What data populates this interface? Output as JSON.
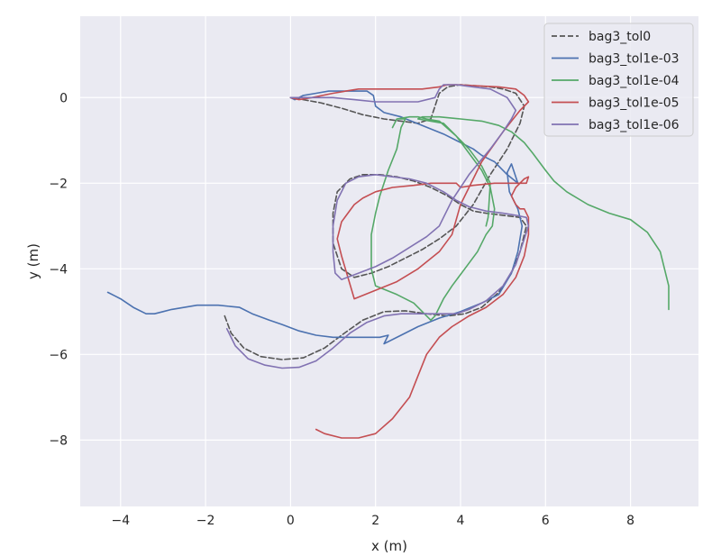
{
  "chart_data": {
    "type": "line",
    "title": "",
    "xlabel": "x (m)",
    "ylabel": "y (m)",
    "xlim": [
      -4.95,
      9.6
    ],
    "ylim": [
      -9.55,
      1.9
    ],
    "xticks": [
      -4,
      -2,
      0,
      2,
      4,
      6,
      8
    ],
    "yticks": [
      -8,
      -6,
      -4,
      -2,
      0
    ],
    "grid": true,
    "legend_position": "top-right",
    "series": [
      {
        "name": "bag3_tol0",
        "color": "#555555",
        "dash": "dashed",
        "x": [
          -1.55,
          -1.4,
          -1.1,
          -0.7,
          -0.2,
          0.3,
          0.8,
          1.2,
          1.7,
          2.2,
          2.7,
          3.2,
          3.7,
          4.1,
          4.5,
          4.9,
          5.2,
          5.4,
          5.55,
          5.4,
          5.0,
          4.6,
          4.3,
          4.0,
          3.7,
          3.3,
          2.9,
          2.5,
          2.1,
          1.7,
          1.4,
          1.1,
          1.0,
          1.0,
          1.2,
          1.5,
          1.9,
          2.3,
          2.7,
          3.1,
          3.5,
          3.9,
          4.3,
          4.7,
          5.1,
          5.4,
          5.5,
          5.3,
          5.0,
          4.7,
          4.3,
          4.0,
          3.7,
          3.5,
          3.4,
          3.3,
          3.0,
          2.6,
          2.2,
          1.7,
          1.2,
          0.7,
          0.3,
          0.0
        ],
        "y": [
          -5.1,
          -5.5,
          -5.85,
          -6.05,
          -6.12,
          -6.08,
          -5.85,
          -5.55,
          -5.2,
          -5.0,
          -4.98,
          -5.05,
          -5.1,
          -5.05,
          -4.9,
          -4.55,
          -4.1,
          -3.6,
          -3.0,
          -2.8,
          -2.75,
          -2.7,
          -2.65,
          -2.5,
          -2.3,
          -2.1,
          -1.95,
          -1.85,
          -1.8,
          -1.8,
          -1.9,
          -2.2,
          -2.7,
          -3.4,
          -4.0,
          -4.2,
          -4.1,
          -3.95,
          -3.75,
          -3.55,
          -3.3,
          -3.0,
          -2.5,
          -1.8,
          -1.2,
          -0.6,
          -0.2,
          0.1,
          0.2,
          0.25,
          0.28,
          0.3,
          0.25,
          0.1,
          -0.2,
          -0.5,
          -0.6,
          -0.55,
          -0.5,
          -0.4,
          -0.25,
          -0.12,
          -0.05,
          0.0
        ]
      },
      {
        "name": "bag3_tol1e-03",
        "color": "#4c72b0",
        "dash": "solid",
        "x": [
          -4.3,
          -4.0,
          -3.7,
          -3.4,
          -3.2,
          -3.0,
          -2.8,
          -2.5,
          -2.2,
          -2.0,
          -1.7,
          -1.2,
          -0.9,
          -0.5,
          -0.2,
          0.2,
          0.6,
          1.0,
          1.4,
          1.8,
          2.1,
          2.3,
          2.2,
          2.6,
          3.0,
          3.5,
          4.0,
          4.5,
          4.9,
          5.2,
          5.35,
          5.45,
          5.35,
          5.15,
          5.1,
          5.2,
          5.35,
          5.1,
          4.9,
          4.8,
          4.7,
          4.5,
          4.3,
          4.0,
          3.6,
          3.1,
          2.6,
          2.2,
          2.0,
          1.95,
          1.8,
          1.5,
          1.2,
          0.9,
          0.6,
          0.3,
          0.1,
          0.0
        ],
        "y": [
          -4.55,
          -4.7,
          -4.9,
          -5.05,
          -5.05,
          -5.0,
          -4.95,
          -4.9,
          -4.85,
          -4.85,
          -4.85,
          -4.9,
          -5.05,
          -5.2,
          -5.3,
          -5.45,
          -5.55,
          -5.6,
          -5.6,
          -5.6,
          -5.6,
          -5.55,
          -5.75,
          -5.55,
          -5.35,
          -5.15,
          -5.0,
          -4.8,
          -4.6,
          -4.1,
          -3.6,
          -3.0,
          -2.6,
          -2.2,
          -1.75,
          -1.55,
          -2.0,
          -1.8,
          -1.6,
          -1.5,
          -1.45,
          -1.35,
          -1.2,
          -1.05,
          -0.85,
          -0.65,
          -0.45,
          -0.35,
          -0.2,
          0.05,
          0.15,
          0.15,
          0.15,
          0.15,
          0.1,
          0.05,
          -0.05,
          0.0
        ]
      },
      {
        "name": "bag3_tol1e-04",
        "color": "#55a868",
        "dash": "solid",
        "x": [
          8.9,
          8.9,
          8.7,
          8.4,
          8.0,
          7.5,
          7.0,
          6.5,
          6.2,
          6.0,
          5.7,
          5.5,
          5.2,
          4.9,
          4.5,
          4.0,
          3.5,
          3.2,
          3.1,
          3.0,
          3.3,
          3.6,
          3.9,
          4.2,
          4.5,
          4.7,
          4.8,
          4.75,
          4.6,
          4.4,
          4.1,
          3.8,
          3.6,
          3.4,
          3.3,
          3.2,
          2.9,
          2.5,
          2.0,
          1.9,
          1.9,
          2.0,
          2.1,
          2.3,
          2.5,
          2.6,
          2.7,
          2.5,
          2.4,
          2.5,
          2.8,
          3.0,
          3.2,
          3.5,
          3.9,
          4.2,
          4.5,
          4.7,
          4.65,
          4.6
        ],
        "y": [
          -4.95,
          -4.4,
          -3.6,
          -3.15,
          -2.85,
          -2.7,
          -2.5,
          -2.2,
          -1.95,
          -1.7,
          -1.3,
          -1.05,
          -0.8,
          -0.65,
          -0.55,
          -0.5,
          -0.45,
          -0.45,
          -0.45,
          -0.5,
          -0.55,
          -0.6,
          -0.9,
          -1.3,
          -1.7,
          -2.1,
          -2.6,
          -3.0,
          -3.2,
          -3.6,
          -4.0,
          -4.4,
          -4.7,
          -5.1,
          -5.2,
          -5.1,
          -4.8,
          -4.6,
          -4.4,
          -4.0,
          -3.2,
          -2.7,
          -2.3,
          -1.7,
          -1.2,
          -0.7,
          -0.5,
          -0.5,
          -0.7,
          -0.5,
          -0.45,
          -0.45,
          -0.5,
          -0.55,
          -0.9,
          -1.2,
          -1.6,
          -2.0,
          -2.8,
          -3.0
        ]
      },
      {
        "name": "bag3_tol1e-05",
        "color": "#c44e52",
        "dash": "solid",
        "x": [
          0.6,
          0.8,
          1.2,
          1.6,
          2.0,
          2.4,
          2.8,
          3.0,
          3.2,
          3.5,
          3.8,
          4.2,
          4.6,
          5.0,
          5.3,
          5.5,
          5.6,
          5.6,
          5.5,
          5.4,
          5.3,
          5.2,
          5.3,
          5.5,
          5.6,
          5.55,
          5.2,
          4.8,
          4.3,
          4.0,
          3.9,
          3.7,
          3.3,
          2.9,
          2.4,
          2.0,
          1.7,
          1.5,
          1.2,
          1.1,
          1.2,
          1.5,
          2.0,
          2.5,
          3.0,
          3.5,
          3.8,
          4.0,
          4.5,
          5.0,
          5.4,
          5.6,
          5.5,
          5.3,
          4.9,
          4.3,
          3.9,
          3.7,
          3.5,
          3.1,
          2.6,
          2.1,
          1.6,
          1.3,
          1.0,
          0.5,
          0.2,
          0.0
        ],
        "y": [
          -7.75,
          -7.85,
          -7.95,
          -7.95,
          -7.85,
          -7.5,
          -7.0,
          -6.5,
          -6.0,
          -5.6,
          -5.35,
          -5.1,
          -4.9,
          -4.6,
          -4.2,
          -3.7,
          -3.2,
          -2.8,
          -2.6,
          -2.6,
          -2.5,
          -2.3,
          -2.1,
          -1.9,
          -1.85,
          -2.0,
          -2.0,
          -2.0,
          -2.05,
          -2.1,
          -2.0,
          -2.0,
          -2.0,
          -2.05,
          -2.1,
          -2.2,
          -2.35,
          -2.5,
          -2.9,
          -3.3,
          -3.7,
          -4.7,
          -4.5,
          -4.3,
          -4.0,
          -3.6,
          -3.2,
          -2.5,
          -1.5,
          -0.8,
          -0.3,
          -0.1,
          0.05,
          0.2,
          0.25,
          0.28,
          0.3,
          0.3,
          0.25,
          0.2,
          0.2,
          0.2,
          0.2,
          0.15,
          0.1,
          0.0,
          -0.05,
          0.0
        ]
      },
      {
        "name": "bag3_tol1e-06",
        "color": "#8172b2",
        "dash": "solid",
        "x": [
          -1.5,
          -1.3,
          -1.0,
          -0.6,
          -0.2,
          0.2,
          0.6,
          1.0,
          1.4,
          1.8,
          2.2,
          2.6,
          3.0,
          3.5,
          3.9,
          4.2,
          4.6,
          5.0,
          5.3,
          5.5,
          5.6,
          5.55,
          5.3,
          5.0,
          4.6,
          4.2,
          3.9,
          3.6,
          3.2,
          2.8,
          2.4,
          2.0,
          1.6,
          1.3,
          1.1,
          1.0,
          1.0,
          1.05,
          1.2,
          1.6,
          2.0,
          2.4,
          2.8,
          3.2,
          3.5,
          3.8,
          4.2,
          4.7,
          5.0,
          5.2,
          5.3,
          5.1,
          4.7,
          4.3,
          3.9,
          3.6,
          3.5,
          3.4,
          3.0,
          2.5,
          2.0,
          1.5,
          1.0,
          0.6,
          0.2,
          0.0
        ],
        "y": [
          -5.4,
          -5.8,
          -6.1,
          -6.25,
          -6.32,
          -6.3,
          -6.15,
          -5.85,
          -5.5,
          -5.25,
          -5.1,
          -5.05,
          -5.05,
          -5.05,
          -5.05,
          -4.95,
          -4.75,
          -4.4,
          -3.9,
          -3.3,
          -3.0,
          -2.8,
          -2.75,
          -2.7,
          -2.65,
          -2.55,
          -2.4,
          -2.2,
          -2.0,
          -1.9,
          -1.85,
          -1.8,
          -1.85,
          -2.0,
          -2.4,
          -3.0,
          -3.6,
          -4.1,
          -4.25,
          -4.1,
          -3.95,
          -3.75,
          -3.5,
          -3.25,
          -3.0,
          -2.4,
          -1.8,
          -1.2,
          -0.8,
          -0.5,
          -0.3,
          0.0,
          0.2,
          0.25,
          0.3,
          0.3,
          0.2,
          0.0,
          -0.1,
          -0.1,
          -0.1,
          -0.05,
          0.0,
          0.0,
          0.0,
          0.0
        ]
      }
    ]
  }
}
